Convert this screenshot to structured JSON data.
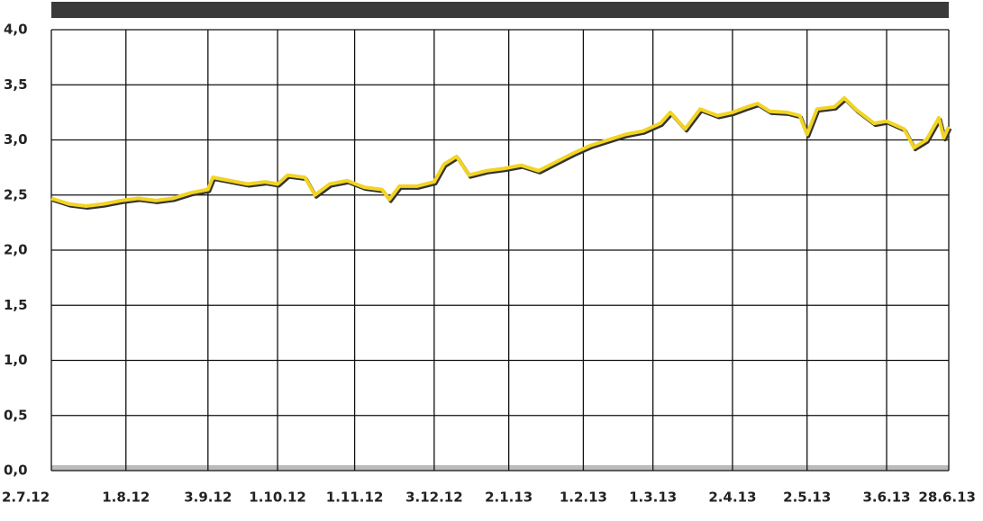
{
  "chart_data": {
    "type": "line",
    "x": [
      "2012-07-02",
      "2012-07-09",
      "2012-07-16",
      "2012-07-23",
      "2012-07-30",
      "2012-08-06",
      "2012-08-13",
      "2012-08-20",
      "2012-08-27",
      "2012-09-03",
      "2012-09-05",
      "2012-09-12",
      "2012-09-19",
      "2012-09-26",
      "2012-10-01",
      "2012-10-05",
      "2012-10-12",
      "2012-10-16",
      "2012-10-22",
      "2012-10-29",
      "2012-11-05",
      "2012-11-12",
      "2012-11-15",
      "2012-11-19",
      "2012-11-26",
      "2012-12-03",
      "2012-12-07",
      "2012-12-12",
      "2012-12-17",
      "2012-12-24",
      "2012-12-31",
      "2013-01-07",
      "2013-01-14",
      "2013-01-21",
      "2013-01-28",
      "2013-02-04",
      "2013-02-11",
      "2013-02-18",
      "2013-02-25",
      "2013-03-04",
      "2013-03-08",
      "2013-03-14",
      "2013-03-20",
      "2013-03-27",
      "2013-04-02",
      "2013-04-08",
      "2013-04-12",
      "2013-04-17",
      "2013-04-24",
      "2013-04-29",
      "2013-05-02",
      "2013-05-06",
      "2013-05-13",
      "2013-05-17",
      "2013-05-22",
      "2013-05-29",
      "2013-06-03",
      "2013-06-10",
      "2013-06-14",
      "2013-06-19",
      "2013-06-24",
      "2013-06-26",
      "2013-06-28"
    ],
    "series": [
      {
        "color": "#f2d422",
        "values": [
          2.47,
          2.42,
          2.4,
          2.42,
          2.45,
          2.47,
          2.45,
          2.47,
          2.52,
          2.55,
          2.66,
          2.63,
          2.6,
          2.62,
          2.6,
          2.68,
          2.66,
          2.5,
          2.6,
          2.63,
          2.57,
          2.55,
          2.46,
          2.58,
          2.58,
          2.62,
          2.78,
          2.85,
          2.68,
          2.72,
          2.74,
          2.77,
          2.72,
          2.8,
          2.88,
          2.95,
          3.0,
          3.05,
          3.08,
          3.15,
          3.25,
          3.1,
          3.28,
          3.22,
          3.25,
          3.3,
          3.33,
          3.26,
          3.25,
          3.22,
          3.05,
          3.28,
          3.3,
          3.38,
          3.27,
          3.15,
          3.17,
          3.1,
          2.93,
          3.0,
          3.2,
          3.02,
          3.12
        ]
      }
    ],
    "xlim": [
      "2012-07-02",
      "2013-06-28"
    ],
    "xticks": [
      {
        "value": "2012-07-02",
        "label": "2.7.12"
      },
      {
        "value": "2012-08-01",
        "label": "1.8.12"
      },
      {
        "value": "2012-09-03",
        "label": "3.9.12"
      },
      {
        "value": "2012-10-01",
        "label": "1.10.12"
      },
      {
        "value": "2012-11-01",
        "label": "1.11.12"
      },
      {
        "value": "2012-12-03",
        "label": "3.12.12"
      },
      {
        "value": "2013-01-02",
        "label": "2.1.13"
      },
      {
        "value": "2013-02-01",
        "label": "1.2.13"
      },
      {
        "value": "2013-03-01",
        "label": "1.3.13"
      },
      {
        "value": "2013-04-02",
        "label": "2.4.13"
      },
      {
        "value": "2013-05-02",
        "label": "2.5.13"
      },
      {
        "value": "2013-06-03",
        "label": "3.6.13"
      },
      {
        "value": "2013-06-28",
        "label": "28.6.13"
      }
    ],
    "ylim": [
      0,
      4
    ],
    "yticks": [
      {
        "value": 0,
        "label": "0,0"
      },
      {
        "value": 0.5,
        "label": "0,5"
      },
      {
        "value": 1,
        "label": "1,0"
      },
      {
        "value": 1.5,
        "label": "1,5"
      },
      {
        "value": 2,
        "label": "2,0"
      },
      {
        "value": 2.5,
        "label": "2,5"
      },
      {
        "value": 3,
        "label": "3,0"
      },
      {
        "value": 3.5,
        "label": "3,5"
      },
      {
        "value": 4,
        "label": "4,0"
      }
    ],
    "grid": true
  }
}
